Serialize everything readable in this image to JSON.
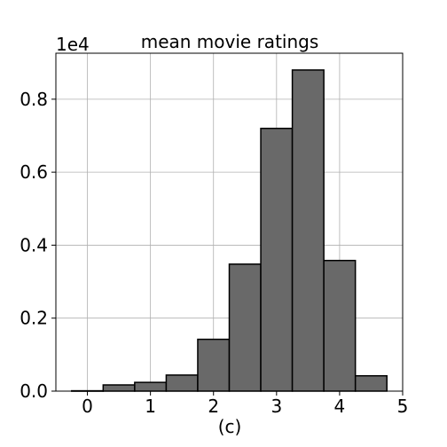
{
  "chart_data": {
    "type": "bar",
    "title": "mean movie ratings",
    "xlabel": "(c)",
    "ylabel": "",
    "y_offset_label": "1e4",
    "bin_width": 0.5,
    "bins": [
      {
        "start": -0.25,
        "value": 10
      },
      {
        "start": 0.25,
        "value": 170
      },
      {
        "start": 0.75,
        "value": 240
      },
      {
        "start": 1.25,
        "value": 440
      },
      {
        "start": 1.75,
        "value": 1420
      },
      {
        "start": 2.25,
        "value": 3480
      },
      {
        "start": 2.75,
        "value": 7200
      },
      {
        "start": 3.25,
        "value": 8800
      },
      {
        "start": 3.75,
        "value": 3580
      },
      {
        "start": 4.25,
        "value": 420
      }
    ],
    "xlim": [
      -0.5,
      5.0
    ],
    "ylim": [
      0,
      9260
    ],
    "x_ticks": [
      0,
      1,
      2,
      3,
      4,
      5
    ],
    "x_tick_labels": [
      "0",
      "1",
      "2",
      "3",
      "4",
      "5"
    ],
    "y_ticks": [
      0,
      2000,
      4000,
      6000,
      8000
    ],
    "y_tick_labels": [
      "0.0",
      "0.2",
      "0.4",
      "0.6",
      "0.8"
    ],
    "grid": true,
    "bar_color": "#696969",
    "edge_color": "#000000"
  }
}
